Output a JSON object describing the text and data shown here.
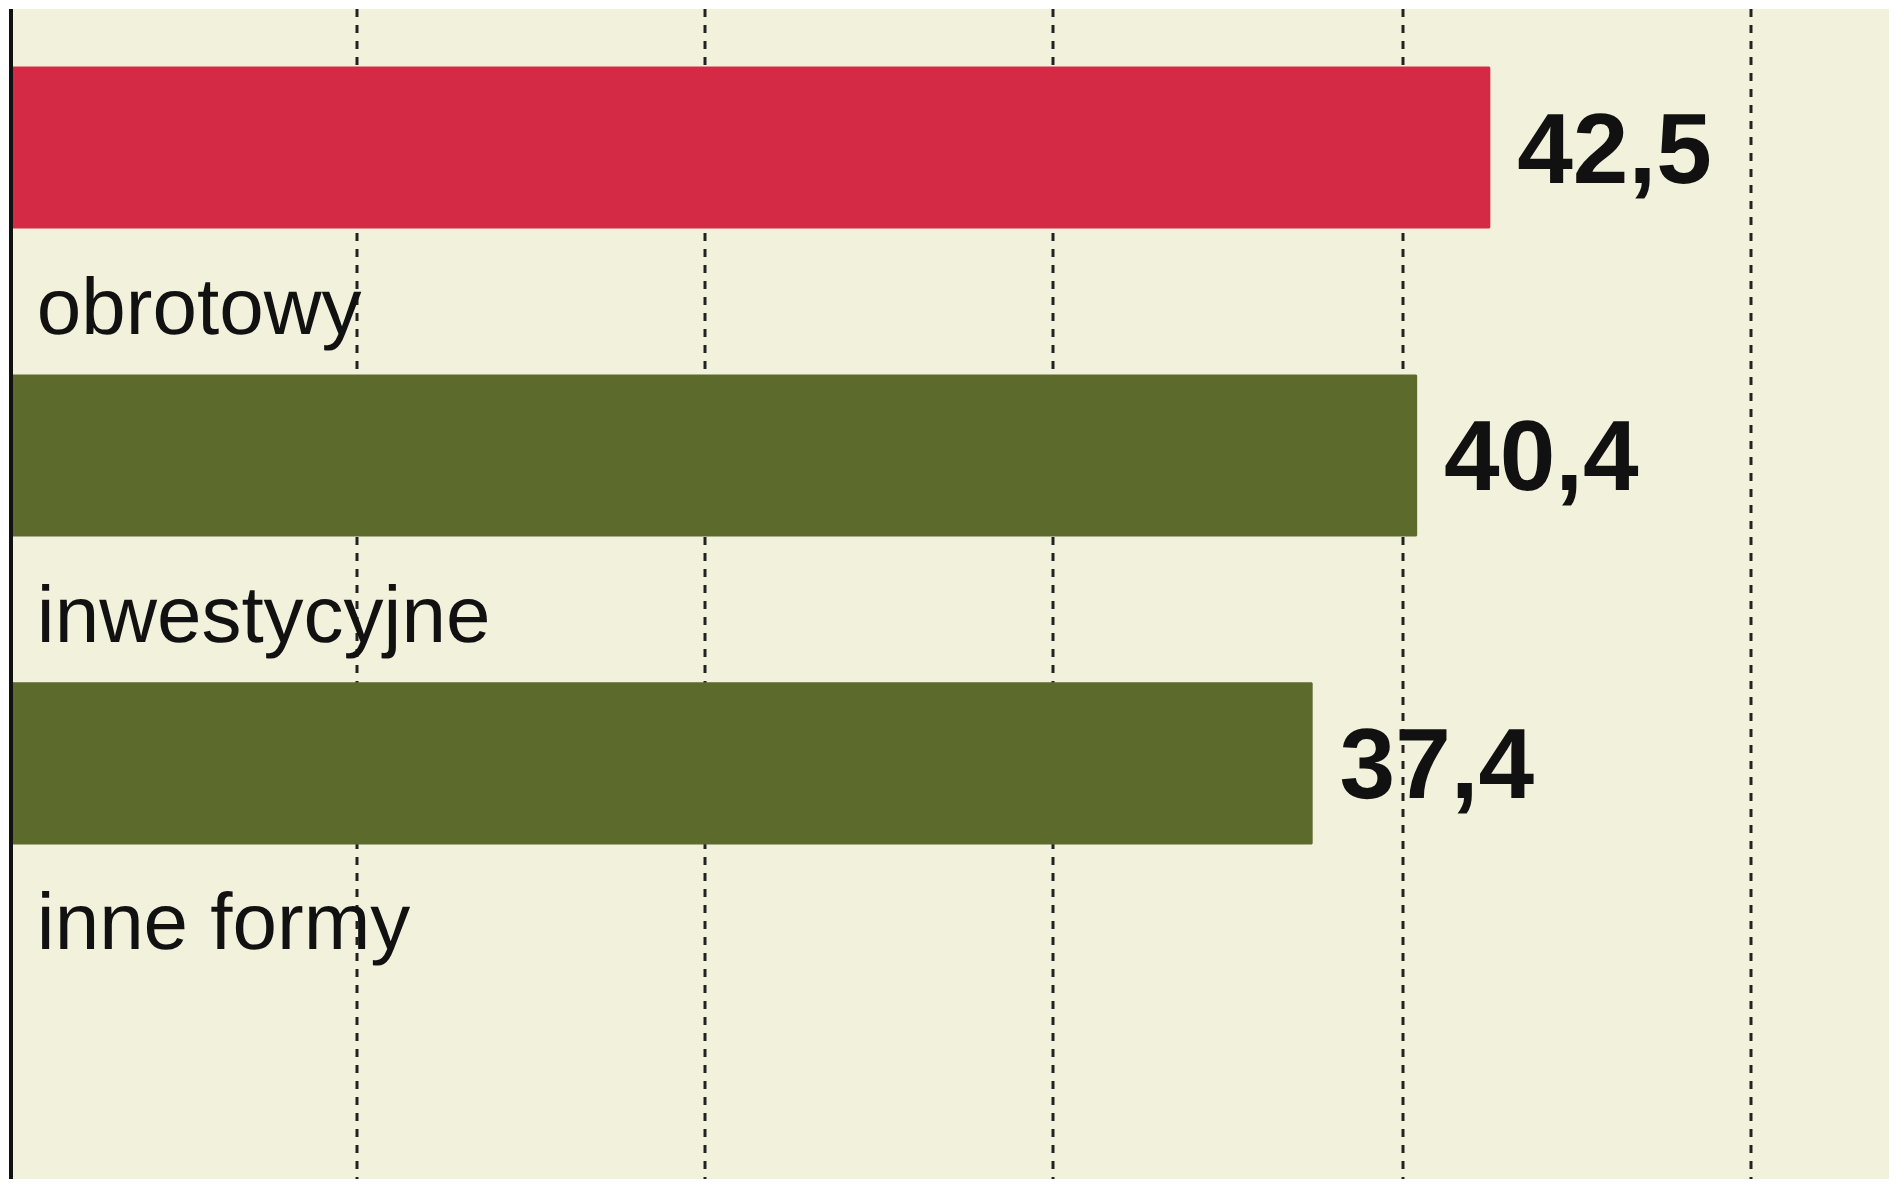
{
  "chart_data": {
    "type": "bar",
    "orientation": "horizontal",
    "categories": [
      null,
      "obrotowy",
      "inwestycyjne",
      "inne formy"
    ],
    "values": [
      42.5,
      40.4,
      37.4,
      null
    ],
    "value_labels": [
      "42,5",
      "40,4",
      "37,4",
      null
    ],
    "colors": [
      "#d42a45",
      "#5c6a2c",
      "#5c6a2c",
      "#5c6a2c"
    ],
    "tick_labels": false,
    "grid": "x"
  }
}
